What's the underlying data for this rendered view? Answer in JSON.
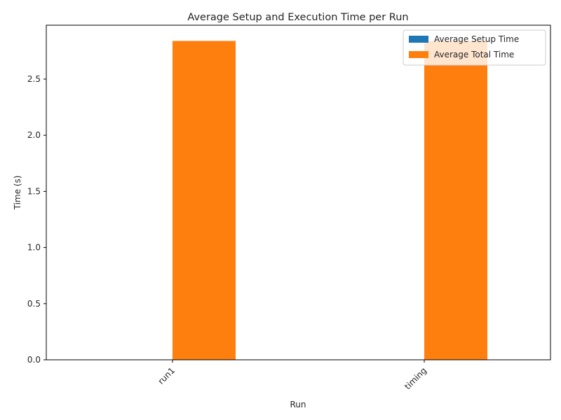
{
  "chart_data": {
    "type": "bar",
    "title": "Average Setup and Execution Time per Run",
    "xlabel": "Run",
    "ylabel": "Time (s)",
    "categories": [
      "run1",
      "timing"
    ],
    "series": [
      {
        "name": "Average Setup Time",
        "color": "#1f77b4",
        "values": [
          0.0,
          0.0
        ]
      },
      {
        "name": "Average Total Time",
        "color": "#ff7f0e",
        "values": [
          2.84,
          2.84
        ]
      }
    ],
    "ylim": [
      0,
      2.98
    ],
    "yticks": [
      "0.0",
      "0.5",
      "1.0",
      "1.5",
      "2.0",
      "2.5"
    ],
    "grid": false,
    "legend_position": "top-right"
  }
}
